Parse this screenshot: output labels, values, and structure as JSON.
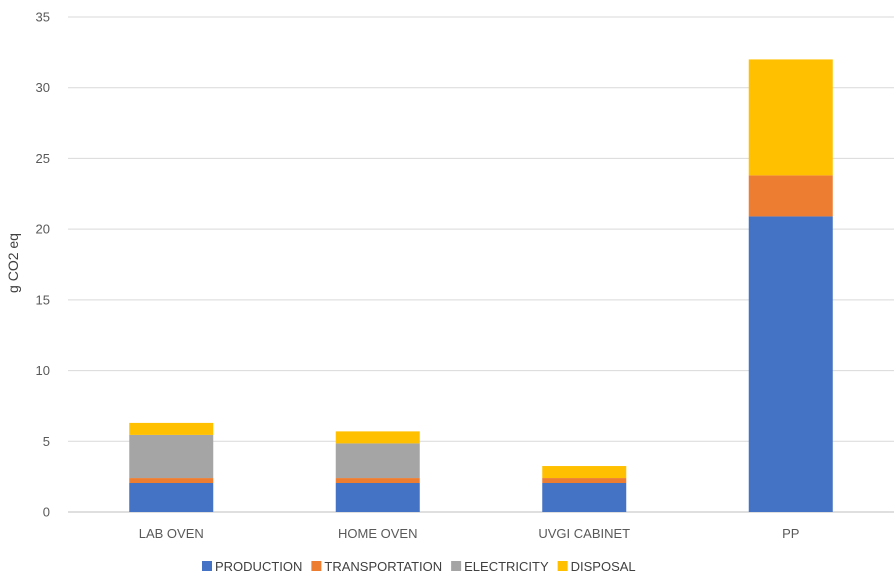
{
  "chart_data": {
    "type": "bar",
    "stacked": true,
    "categories": [
      "LAB OVEN",
      "HOME OVEN",
      "UVGI CABINET",
      "PP"
    ],
    "series": [
      {
        "name": "PRODUCTION",
        "color": "#4472C4",
        "values": [
          2.05,
          2.05,
          2.05,
          20.9
        ]
      },
      {
        "name": "TRANSPORTATION",
        "color": "#ED7D31",
        "values": [
          0.35,
          0.35,
          0.35,
          2.9
        ]
      },
      {
        "name": "ELECTRICITY",
        "color": "#A5A5A5",
        "values": [
          3.05,
          2.45,
          0.0,
          0.0
        ]
      },
      {
        "name": "DISPOSAL",
        "color": "#FFC000",
        "values": [
          0.85,
          0.85,
          0.85,
          8.2
        ]
      }
    ],
    "ylabel": "g CO2 eq",
    "xlabel": "",
    "ylim": [
      0,
      35
    ],
    "yticks": [
      0,
      5,
      10,
      15,
      20,
      25,
      30,
      35
    ],
    "grid": true,
    "legend_position": "bottom"
  }
}
